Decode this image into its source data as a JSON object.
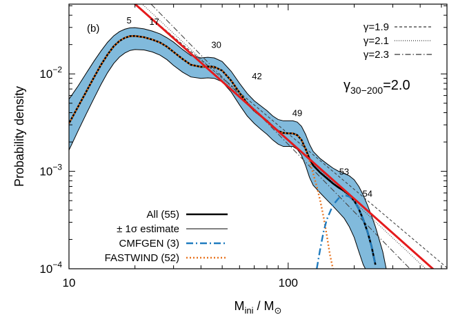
{
  "chart_data": {
    "type": "line",
    "panel_label": "(b)",
    "xlabel": "M_ini / M_⊙",
    "ylabel": "Probability density",
    "xscale": "log",
    "yscale": "log",
    "xlim": [
      10,
      530
    ],
    "ylim": [
      0.0001,
      0.052
    ],
    "x_ticks": [
      10,
      100
    ],
    "x_tick_labels": [
      "10",
      "100"
    ],
    "y_ticks": [
      0.0001,
      0.001,
      0.01
    ],
    "y_tick_labels": [
      {
        "base": "10",
        "exp": "−4"
      },
      {
        "base": "10",
        "exp": "−3"
      },
      {
        "base": "10",
        "exp": "−2"
      }
    ],
    "annotation": {
      "base": "γ",
      "sub": "30−200",
      "rest": "=2.0"
    },
    "legend_top_right": [
      {
        "label": "γ=1.9",
        "style": "dashed"
      },
      {
        "label": "γ=2.1",
        "style": "dotted"
      },
      {
        "label": "γ=2.3",
        "style": "dash-dot"
      }
    ],
    "legend_bottom_left": [
      {
        "label": "All (55)",
        "style": "thick-solid",
        "color": "#000000"
      },
      {
        "label": "± 1σ estimate",
        "style": "thin-solid",
        "color": "#000000"
      },
      {
        "label": "CMFGEN (3)",
        "style": "dash-dot",
        "color": "#1f7bbf"
      },
      {
        "label": "FASTWIND (52)",
        "style": "dotted",
        "color": "#e8731f"
      }
    ],
    "rank_labels": [
      {
        "text": "5",
        "x": 18.8,
        "y": 0.033
      },
      {
        "text": "17",
        "x": 24.5,
        "y": 0.032
      },
      {
        "text": "30",
        "x": 47,
        "y": 0.0185
      },
      {
        "text": "42",
        "x": 72,
        "y": 0.0088
      },
      {
        "text": "49",
        "x": 110,
        "y": 0.0037
      },
      {
        "text": "53",
        "x": 180,
        "y": 0.00092
      },
      {
        "text": "54",
        "x": 230,
        "y": 0.00055
      }
    ],
    "series": [
      {
        "name": "All (55)",
        "color": "#000000",
        "x": [
          10,
          11,
          12,
          13,
          14,
          15,
          16,
          17,
          18,
          19,
          20,
          22,
          24,
          26,
          28,
          30,
          33,
          36,
          40,
          43,
          46,
          50,
          55,
          60,
          65,
          70,
          75,
          80,
          85,
          90,
          95,
          100,
          105,
          110,
          115,
          120,
          125,
          130,
          140,
          150,
          160,
          170,
          180,
          190,
          200,
          210,
          220,
          230,
          240,
          250
        ],
        "y": [
          0.0031,
          0.0046,
          0.0066,
          0.0092,
          0.0124,
          0.0158,
          0.0192,
          0.0218,
          0.0235,
          0.0244,
          0.0245,
          0.0238,
          0.0225,
          0.021,
          0.019,
          0.0168,
          0.0142,
          0.0124,
          0.0118,
          0.0119,
          0.0118,
          0.0108,
          0.0085,
          0.0064,
          0.005,
          0.0042,
          0.0037,
          0.0033,
          0.0029,
          0.0026,
          0.00248,
          0.00245,
          0.00245,
          0.00235,
          0.0021,
          0.0017,
          0.00135,
          0.00115,
          0.00097,
          0.00085,
          0.00075,
          0.00068,
          0.00063,
          0.00057,
          0.0005,
          0.00041,
          0.00032,
          0.00024,
          0.00017,
          0.00011
        ]
      },
      {
        "name": "FASTWIND (52)",
        "color": "#e8731f",
        "x": [
          10,
          11,
          12,
          13,
          14,
          15,
          16,
          17,
          18,
          19,
          20,
          22,
          24,
          26,
          28,
          30,
          33,
          36,
          40,
          43,
          46,
          50,
          55,
          60,
          65,
          70,
          75,
          80,
          85,
          90,
          95,
          100,
          105,
          110,
          115,
          120,
          125,
          130,
          135,
          140,
          145,
          150,
          155,
          160
        ],
        "y": [
          0.0031,
          0.0046,
          0.0066,
          0.0092,
          0.0124,
          0.0158,
          0.0192,
          0.0218,
          0.0235,
          0.0244,
          0.0245,
          0.0238,
          0.0225,
          0.021,
          0.019,
          0.0168,
          0.0142,
          0.0124,
          0.0118,
          0.0119,
          0.0118,
          0.0108,
          0.0085,
          0.0064,
          0.005,
          0.0042,
          0.0037,
          0.0033,
          0.0029,
          0.0026,
          0.00248,
          0.00245,
          0.00245,
          0.00235,
          0.0021,
          0.0017,
          0.00128,
          0.00095,
          0.0007,
          0.0005,
          0.00034,
          0.00022,
          0.00014,
          0.0001
        ]
      },
      {
        "name": "CMFGEN (3)",
        "color": "#1f7bbf",
        "x": [
          135,
          140,
          145,
          150,
          160,
          170,
          180,
          190,
          200,
          210,
          220,
          230,
          240,
          250
        ],
        "y": [
          0.0001,
          0.00016,
          0.00024,
          0.00032,
          0.00045,
          0.00053,
          0.00057,
          0.00055,
          0.0005,
          0.00041,
          0.00032,
          0.00024,
          0.00017,
          0.00011
        ]
      }
    ],
    "band_upper": {
      "x": [
        10,
        11,
        12,
        13,
        14,
        15,
        16,
        17,
        18,
        19,
        20,
        22,
        24,
        26,
        28,
        30,
        33,
        36,
        40,
        43,
        46,
        50,
        55,
        60,
        65,
        70,
        75,
        80,
        85,
        90,
        95,
        100,
        105,
        110,
        115,
        120,
        125,
        130,
        140,
        150,
        160,
        170,
        180,
        190,
        200,
        210,
        220,
        230,
        240,
        250,
        260,
        270,
        280
      ],
      "y": [
        0.0055,
        0.0075,
        0.0102,
        0.0135,
        0.0172,
        0.0211,
        0.0246,
        0.0272,
        0.0288,
        0.0297,
        0.0298,
        0.029,
        0.0275,
        0.0258,
        0.0235,
        0.0212,
        0.0178,
        0.0154,
        0.0146,
        0.0148,
        0.0146,
        0.0134,
        0.0106,
        0.008,
        0.0063,
        0.0053,
        0.0047,
        0.0042,
        0.0037,
        0.0034,
        0.0033,
        0.0033,
        0.0033,
        0.0032,
        0.0029,
        0.0024,
        0.0019,
        0.0016,
        0.00135,
        0.0012,
        0.00108,
        0.001,
        0.00095,
        0.0009,
        0.00082,
        0.0007,
        0.00057,
        0.00045,
        0.00035,
        0.00027,
        0.0002,
        0.00015,
        0.0001
      ]
    },
    "band_lower": {
      "x": [
        10,
        11,
        12,
        13,
        14,
        15,
        16,
        17,
        18,
        19,
        20,
        22,
        24,
        26,
        28,
        30,
        33,
        36,
        40,
        43,
        46,
        50,
        55,
        60,
        65,
        70,
        75,
        80,
        85,
        90,
        95,
        100,
        105,
        110,
        115,
        120,
        125,
        130,
        140,
        150,
        160,
        170,
        180,
        190,
        200,
        210,
        220,
        225
      ],
      "y": [
        0.00165,
        0.0026,
        0.0039,
        0.0056,
        0.0078,
        0.0103,
        0.0128,
        0.0149,
        0.0164,
        0.0174,
        0.0178,
        0.0176,
        0.0168,
        0.0156,
        0.014,
        0.0122,
        0.0104,
        0.0093,
        0.009,
        0.0091,
        0.009,
        0.0083,
        0.0065,
        0.0048,
        0.0037,
        0.0031,
        0.0027,
        0.0024,
        0.0021,
        0.0019,
        0.0018,
        0.0018,
        0.0018,
        0.00168,
        0.00146,
        0.00115,
        0.00087,
        0.00072,
        0.0006,
        0.00051,
        0.00044,
        0.00038,
        0.00033,
        0.00027,
        0.00021,
        0.00015,
        0.00011,
        0.0001
      ]
    },
    "power_law_fit": {
      "gamma": 2.0,
      "anchor_x": 60,
      "anchor_y": 0.0058,
      "x_range": [
        18,
        530
      ],
      "color": "#e41a1c"
    },
    "reference_lines": [
      {
        "gamma": 1.9,
        "style": "dashed",
        "anchor_x": 70,
        "anchor_y": 0.0048
      },
      {
        "gamma": 2.1,
        "style": "dotted",
        "anchor_x": 70,
        "anchor_y": 0.0044
      },
      {
        "gamma": 2.3,
        "style": "dash-dot",
        "anchor_x": 70,
        "anchor_y": 0.0043
      }
    ],
    "grid": false
  }
}
